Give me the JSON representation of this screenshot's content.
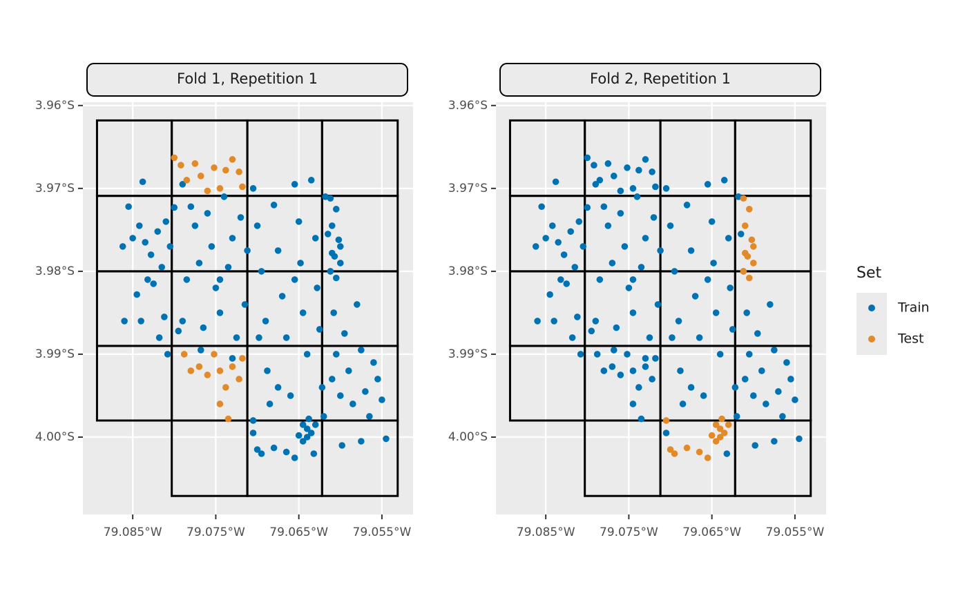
{
  "chart_data": [
    {
      "type": "scatter",
      "title": "Fold 1, Repetition 1",
      "xlim": [
        -79.091,
        -79.05125
      ],
      "ylim": [
        -4.00933,
        -3.9596
      ],
      "grid": true,
      "xticks": [
        {
          "value": -79.085,
          "label": "79.085°W"
        },
        {
          "value": -79.075,
          "label": "79.075°W"
        },
        {
          "value": -79.065,
          "label": "79.065°W"
        },
        {
          "value": -79.055,
          "label": "79.055°W"
        }
      ],
      "yticks": [
        {
          "value": -3.96,
          "label": "3.96°S"
        },
        {
          "value": -3.97,
          "label": "3.97°S"
        },
        {
          "value": -3.98,
          "label": "3.98°S"
        },
        {
          "value": -3.99,
          "label": "3.99°S"
        },
        {
          "value": -4,
          "label": "4.00°S"
        }
      ],
      "blocks": [
        [
          -79.0893,
          -79.0803,
          -3.9618,
          -3.9709
        ],
        [
          -79.0803,
          -79.0712,
          -3.9618,
          -3.9709
        ],
        [
          -79.0712,
          -79.0622,
          -3.9618,
          -3.9709
        ],
        [
          -79.0622,
          -79.0531,
          -3.9618,
          -3.9709
        ],
        [
          -79.0893,
          -79.0803,
          -3.9709,
          -3.98
        ],
        [
          -79.0803,
          -79.0712,
          -3.9709,
          -3.98
        ],
        [
          -79.0712,
          -79.0622,
          -3.9709,
          -3.98
        ],
        [
          -79.0622,
          -79.0531,
          -3.9709,
          -3.98
        ],
        [
          -79.0893,
          -79.0803,
          -3.98,
          -3.989
        ],
        [
          -79.0803,
          -79.0712,
          -3.98,
          -3.989
        ],
        [
          -79.0712,
          -79.0622,
          -3.98,
          -3.989
        ],
        [
          -79.0622,
          -79.0531,
          -3.98,
          -3.989
        ],
        [
          -79.0893,
          -79.0803,
          -3.989,
          -3.998
        ],
        [
          -79.0803,
          -79.0712,
          -3.989,
          -3.998
        ],
        [
          -79.0712,
          -79.0622,
          -3.989,
          -3.998
        ],
        [
          -79.0622,
          -79.0531,
          -3.989,
          -3.998
        ],
        [
          -79.0803,
          -79.0712,
          -3.998,
          -4.0071
        ],
        [
          -79.0712,
          -79.0622,
          -3.998,
          -4.0071
        ],
        [
          -79.0622,
          -79.0531,
          -3.998,
          -4.0071
        ]
      ],
      "series": [
        {
          "name": "Train",
          "color": "#0072b2",
          "x": [
            -79.0855,
            -79.0862,
            -79.085,
            -79.0842,
            -79.0838,
            -79.0835,
            -79.0828,
            -79.082,
            -79.0832,
            -79.0845,
            -79.084,
            -79.0825,
            -79.0815,
            -79.081,
            -79.0805,
            -79.0818,
            -79.0808,
            -79.086,
            -79.0812,
            -79.08,
            -79.0795,
            -79.079,
            -79.0785,
            -79.078,
            -79.0775,
            -79.077,
            -79.0765,
            -79.076,
            -79.0755,
            -79.075,
            -79.0745,
            -79.074,
            -79.0735,
            -79.073,
            -79.0725,
            -79.072,
            -79.0715,
            -79.0712,
            -79.079,
            -79.073,
            -79.0745,
            -79.0768,
            -79.0705,
            -79.07,
            -79.0695,
            -79.069,
            -79.0688,
            -79.0685,
            -79.068,
            -79.0675,
            -79.067,
            -79.0665,
            -79.066,
            -79.0655,
            -79.065,
            -79.0648,
            -79.0645,
            -79.064,
            -79.0635,
            -79.063,
            -79.0628,
            -79.0625,
            -79.0622,
            -79.0705,
            -79.0632,
            -79.0675,
            -79.0698,
            -79.0655,
            -79.0618,
            -79.0615,
            -79.0612,
            -79.0608,
            -79.0605,
            -79.06,
            -79.0598,
            -79.0595,
            -79.059,
            -79.0585,
            -79.058,
            -79.0575,
            -79.057,
            -79.0565,
            -79.056,
            -79.0555,
            -79.055,
            -79.0545,
            -79.0575,
            -79.061,
            -79.062,
            -79.0612,
            -79.0605,
            -79.061,
            -79.0602,
            -79.061,
            -79.06,
            -79.0607,
            -79.0612,
            -79.0605,
            -79.06,
            -79.07,
            -79.0695,
            -79.068,
            -79.0665,
            -79.0655,
            -79.065,
            -79.0645,
            -79.064,
            -79.0638,
            -79.0635,
            -79.0645,
            -79.063,
            -79.064,
            -79.0705
          ],
          "y": [
            -3.9722,
            -3.977,
            -3.976,
            -3.9745,
            -3.9692,
            -3.9765,
            -3.978,
            -3.9752,
            -3.981,
            -3.9828,
            -3.986,
            -3.9815,
            -3.9795,
            -3.974,
            -3.977,
            -3.988,
            -3.99,
            -3.986,
            -3.9855,
            -3.9723,
            -3.9872,
            -3.986,
            -3.981,
            -3.9722,
            -3.9745,
            -3.979,
            -3.9868,
            -3.973,
            -3.977,
            -3.982,
            -3.985,
            -3.971,
            -3.9795,
            -3.976,
            -3.988,
            -3.9735,
            -3.984,
            -3.9775,
            -3.9695,
            -3.9905,
            -3.981,
            -3.9895,
            -3.97,
            -3.9745,
            -3.98,
            -3.986,
            -3.992,
            -3.996,
            -3.972,
            -3.9775,
            -3.983,
            -3.988,
            -3.995,
            -3.9695,
            -3.974,
            -3.979,
            -3.985,
            -3.99,
            -3.969,
            -3.976,
            -3.982,
            -3.987,
            -3.994,
            -3.9995,
            -4.002,
            -3.994,
            -3.988,
            -3.981,
            -3.971,
            -3.9755,
            -3.98,
            -3.985,
            -3.99,
            -3.995,
            -4.001,
            -3.9875,
            -3.992,
            -3.996,
            -3.984,
            -3.9895,
            -3.9945,
            -3.9975,
            -3.991,
            -3.993,
            -3.9955,
            -4.0002,
            -4.0005,
            -3.993,
            -3.9975,
            -3.9712,
            -3.9725,
            -3.9745,
            -3.9762,
            -3.9778,
            -3.979,
            -3.9782,
            -3.98,
            -3.9808,
            -3.977,
            -4.0015,
            -4.002,
            -4.0013,
            -4.0018,
            -4.0025,
            -3.9998,
            -3.9985,
            -3.999,
            -3.9978,
            -3.9995,
            -4.0005,
            -3.9985,
            -4,
            -3.998
          ]
        },
        {
          "name": "Test",
          "color": "#e08a2c",
          "x": [
            -79.08,
            -79.0792,
            -79.0785,
            -79.0775,
            -79.0768,
            -79.076,
            -79.0752,
            -79.0738,
            -79.073,
            -79.0722,
            -79.0718,
            -79.0745,
            -79.0788,
            -79.078,
            -79.077,
            -79.076,
            -79.0752,
            -79.0745,
            -79.0738,
            -79.073,
            -79.0722,
            -79.0718,
            -79.0745,
            -79.0735
          ],
          "y": [
            -3.9663,
            -3.9672,
            -3.969,
            -3.967,
            -3.9685,
            -3.9703,
            -3.9675,
            -3.9678,
            -3.9665,
            -3.968,
            -3.9698,
            -3.97,
            -3.99,
            -3.992,
            -3.9915,
            -3.9925,
            -3.99,
            -3.992,
            -3.994,
            -3.9915,
            -3.993,
            -3.9905,
            -3.996,
            -3.9978
          ]
        }
      ]
    },
    {
      "type": "scatter",
      "title": "Fold 2, Repetition 1",
      "xlim": [
        -79.091,
        -79.05125
      ],
      "ylim": [
        -4.00933,
        -3.9596
      ],
      "grid": true,
      "xticks": [
        {
          "value": -79.085,
          "label": "79.085°W"
        },
        {
          "value": -79.075,
          "label": "79.075°W"
        },
        {
          "value": -79.065,
          "label": "79.065°W"
        },
        {
          "value": -79.055,
          "label": "79.055°W"
        }
      ],
      "yticks": [
        {
          "value": -3.96,
          "label": "3.96°S"
        },
        {
          "value": -3.97,
          "label": "3.97°S"
        },
        {
          "value": -3.98,
          "label": "3.98°S"
        },
        {
          "value": -3.99,
          "label": "3.99°S"
        },
        {
          "value": -4,
          "label": "4.00°S"
        }
      ],
      "blocks": [
        [
          -79.0893,
          -79.0803,
          -3.9618,
          -3.9709
        ],
        [
          -79.0803,
          -79.0712,
          -3.9618,
          -3.9709
        ],
        [
          -79.0712,
          -79.0622,
          -3.9618,
          -3.9709
        ],
        [
          -79.0622,
          -79.0531,
          -3.9618,
          -3.9709
        ],
        [
          -79.0893,
          -79.0803,
          -3.9709,
          -3.98
        ],
        [
          -79.0803,
          -79.0712,
          -3.9709,
          -3.98
        ],
        [
          -79.0712,
          -79.0622,
          -3.9709,
          -3.98
        ],
        [
          -79.0622,
          -79.0531,
          -3.9709,
          -3.98
        ],
        [
          -79.0893,
          -79.0803,
          -3.98,
          -3.989
        ],
        [
          -79.0803,
          -79.0712,
          -3.98,
          -3.989
        ],
        [
          -79.0712,
          -79.0622,
          -3.98,
          -3.989
        ],
        [
          -79.0622,
          -79.0531,
          -3.98,
          -3.989
        ],
        [
          -79.0893,
          -79.0803,
          -3.989,
          -3.998
        ],
        [
          -79.0803,
          -79.0712,
          -3.989,
          -3.998
        ],
        [
          -79.0712,
          -79.0622,
          -3.989,
          -3.998
        ],
        [
          -79.0622,
          -79.0531,
          -3.989,
          -3.998
        ],
        [
          -79.0803,
          -79.0712,
          -3.998,
          -4.0071
        ],
        [
          -79.0712,
          -79.0622,
          -3.998,
          -4.0071
        ],
        [
          -79.0622,
          -79.0531,
          -3.998,
          -4.0071
        ]
      ],
      "series": [
        {
          "name": "Train",
          "color": "#0072b2",
          "x": [
            -79.0855,
            -79.0862,
            -79.085,
            -79.0842,
            -79.0838,
            -79.0835,
            -79.0828,
            -79.082,
            -79.0832,
            -79.0845,
            -79.084,
            -79.0825,
            -79.0815,
            -79.081,
            -79.0805,
            -79.0818,
            -79.0808,
            -79.086,
            -79.0812,
            -79.08,
            -79.0795,
            -79.079,
            -79.0785,
            -79.078,
            -79.0775,
            -79.077,
            -79.0765,
            -79.076,
            -79.0755,
            -79.075,
            -79.0745,
            -79.074,
            -79.0735,
            -79.073,
            -79.0725,
            -79.072,
            -79.0715,
            -79.0712,
            -79.079,
            -79.073,
            -79.0745,
            -79.0768,
            -79.0705,
            -79.07,
            -79.0695,
            -79.069,
            -79.0688,
            -79.0685,
            -79.068,
            -79.0675,
            -79.067,
            -79.0665,
            -79.066,
            -79.0655,
            -79.065,
            -79.0648,
            -79.0645,
            -79.064,
            -79.0635,
            -79.063,
            -79.0628,
            -79.0625,
            -79.0622,
            -79.0705,
            -79.0632,
            -79.0675,
            -79.0698,
            -79.0655,
            -79.0618,
            -79.0615,
            -79.0612,
            -79.0608,
            -79.0605,
            -79.06,
            -79.0598,
            -79.0595,
            -79.059,
            -79.0585,
            -79.058,
            -79.0575,
            -79.057,
            -79.0565,
            -79.056,
            -79.0555,
            -79.055,
            -79.0545,
            -79.0575,
            -79.061,
            -79.062,
            -79.08,
            -79.0792,
            -79.0785,
            -79.0775,
            -79.0768,
            -79.076,
            -79.0752,
            -79.0738,
            -79.073,
            -79.0722,
            -79.0718,
            -79.0745,
            -79.0788,
            -79.078,
            -79.077,
            -79.076,
            -79.0752,
            -79.0745,
            -79.0738,
            -79.073,
            -79.0722,
            -79.0718,
            -79.0745,
            -79.0735
          ],
          "y": [
            -3.9722,
            -3.977,
            -3.976,
            -3.9745,
            -3.9692,
            -3.9765,
            -3.978,
            -3.9752,
            -3.981,
            -3.9828,
            -3.986,
            -3.9815,
            -3.9795,
            -3.974,
            -3.977,
            -3.988,
            -3.99,
            -3.986,
            -3.9855,
            -3.9723,
            -3.9872,
            -3.986,
            -3.981,
            -3.9722,
            -3.9745,
            -3.979,
            -3.9868,
            -3.973,
            -3.977,
            -3.982,
            -3.985,
            -3.971,
            -3.9795,
            -3.976,
            -3.988,
            -3.9735,
            -3.984,
            -3.9775,
            -3.9695,
            -3.9905,
            -3.981,
            -3.9895,
            -3.97,
            -3.9745,
            -3.98,
            -3.986,
            -3.992,
            -3.996,
            -3.972,
            -3.9775,
            -3.983,
            -3.988,
            -3.995,
            -3.9695,
            -3.974,
            -3.979,
            -3.985,
            -3.99,
            -3.969,
            -3.976,
            -3.982,
            -3.987,
            -3.994,
            -3.9995,
            -4.002,
            -3.994,
            -3.988,
            -3.981,
            -3.971,
            -3.9755,
            -3.98,
            -3.985,
            -3.99,
            -3.995,
            -4.001,
            -3.9875,
            -3.992,
            -3.996,
            -3.984,
            -3.9895,
            -3.9945,
            -3.9975,
            -3.991,
            -3.993,
            -3.9955,
            -4.0002,
            -4.0005,
            -3.993,
            -3.9975,
            -3.9663,
            -3.9672,
            -3.969,
            -3.967,
            -3.9685,
            -3.9703,
            -3.9675,
            -3.9678,
            -3.9665,
            -3.968,
            -3.9698,
            -3.97,
            -3.99,
            -3.992,
            -3.9915,
            -3.9925,
            -3.99,
            -3.992,
            -3.994,
            -3.9915,
            -3.993,
            -3.9905,
            -3.996,
            -3.9978
          ]
        },
        {
          "name": "Test",
          "color": "#e08a2c",
          "x": [
            -79.0612,
            -79.0605,
            -79.061,
            -79.0602,
            -79.061,
            -79.06,
            -79.0607,
            -79.0612,
            -79.0605,
            -79.06,
            -79.07,
            -79.0695,
            -79.068,
            -79.0665,
            -79.0655,
            -79.065,
            -79.0645,
            -79.064,
            -79.0638,
            -79.0635,
            -79.0645,
            -79.063,
            -79.064,
            -79.0705
          ],
          "y": [
            -3.9712,
            -3.9725,
            -3.9745,
            -3.9762,
            -3.9778,
            -3.979,
            -3.9782,
            -3.98,
            -3.9808,
            -3.977,
            -4.0015,
            -4.002,
            -4.0013,
            -4.0018,
            -4.0025,
            -3.9998,
            -3.9985,
            -3.999,
            -3.9978,
            -3.9995,
            -4.0005,
            -3.9985,
            -4,
            -3.998
          ]
        }
      ]
    }
  ],
  "legend": {
    "title": "Set",
    "position": "right"
  }
}
